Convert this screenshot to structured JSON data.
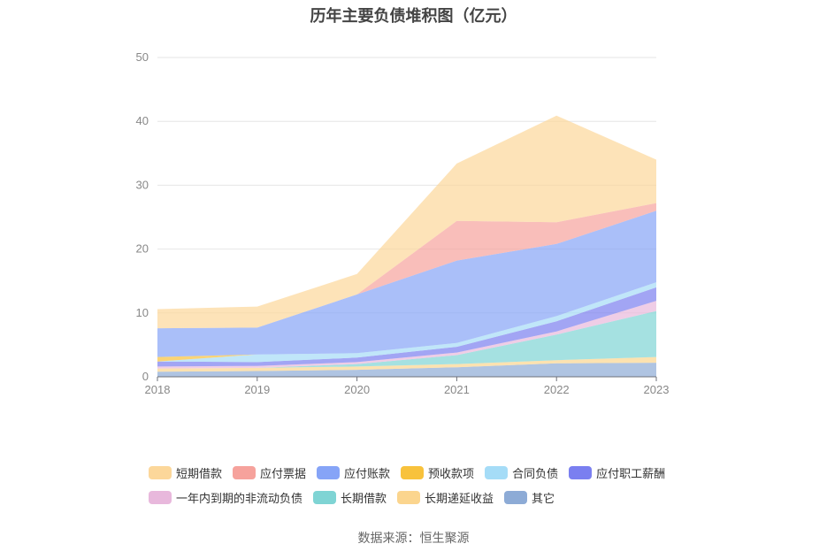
{
  "title": "历年主要负债堆积图（亿元）",
  "source": "数据来源：恒生聚源",
  "chart_data": {
    "type": "area",
    "stacked": true,
    "title": "历年主要负债堆积图（亿元）",
    "x": [
      "2018",
      "2019",
      "2020",
      "2021",
      "2022",
      "2023"
    ],
    "ylim": [
      0,
      50
    ],
    "yticks": [
      0,
      10,
      20,
      30,
      40,
      50
    ],
    "grid": true,
    "legend_position": "bottom",
    "series": [
      {
        "name": "其它",
        "color": "#8dabd6",
        "values": [
          0.8,
          0.9,
          1.1,
          1.5,
          2.1,
          2.2
        ]
      },
      {
        "name": "长期递延收益",
        "color": "#fbd58e",
        "values": [
          0.5,
          0.5,
          0.5,
          0.5,
          0.5,
          0.9
        ]
      },
      {
        "name": "长期借款",
        "color": "#7fd4d4",
        "values": [
          0.0,
          0.0,
          0.4,
          1.4,
          4.0,
          7.2
        ]
      },
      {
        "name": "一年内到期的非流动负债",
        "color": "#e8b8dc",
        "values": [
          0.3,
          0.3,
          0.3,
          0.4,
          0.5,
          1.6
        ]
      },
      {
        "name": "应付职工薪酬",
        "color": "#7a7ff0",
        "values": [
          0.8,
          0.6,
          0.7,
          0.9,
          1.6,
          2.1
        ]
      },
      {
        "name": "合同负债",
        "color": "#a5dcf7",
        "values": [
          0.0,
          1.2,
          0.7,
          0.6,
          0.8,
          0.8
        ]
      },
      {
        "name": "预收款项",
        "color": "#f8c23c",
        "values": [
          0.7,
          0.0,
          0.0,
          0.0,
          0.0,
          0.0
        ]
      },
      {
        "name": "应付账款",
        "color": "#86a4f7",
        "values": [
          4.5,
          4.2,
          9.2,
          12.9,
          11.3,
          11.2
        ]
      },
      {
        "name": "应付票据",
        "color": "#f6a29c",
        "values": [
          0.0,
          0.0,
          0.0,
          6.2,
          3.4,
          1.2
        ]
      },
      {
        "name": "短期借款",
        "color": "#fcd79a",
        "values": [
          3.0,
          3.3,
          3.2,
          9.0,
          16.7,
          6.8
        ]
      }
    ]
  },
  "legend": [
    [
      "短期借款",
      "应付票据",
      "应付账款",
      "预收款项",
      "合同负债",
      "应付职工薪酬"
    ],
    [
      "一年内到期的非流动负债",
      "长期借款",
      "长期递延收益",
      "其它"
    ]
  ]
}
